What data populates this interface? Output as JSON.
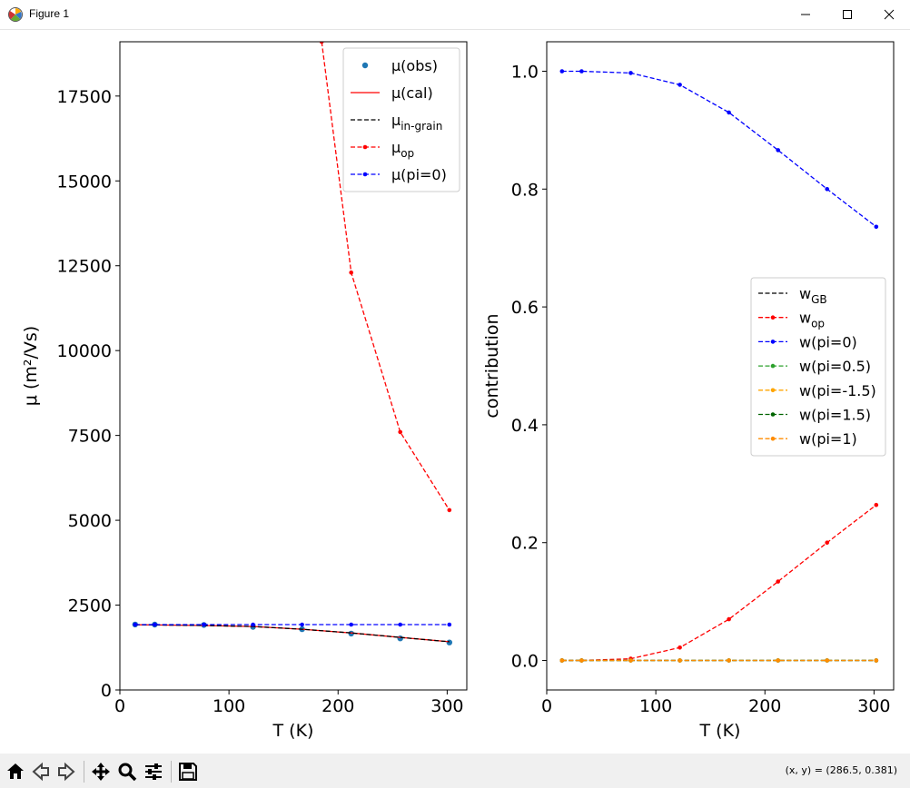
{
  "window": {
    "title": "Figure 1",
    "coords_readout": "(x, y) = (286.5, 0.381)"
  },
  "icons": {
    "app": "matplotlib-icon",
    "minimize": "minimize-icon",
    "maximize": "maximize-icon",
    "close": "close-icon",
    "home": "home-icon",
    "back": "back-arrow-icon",
    "forward": "forward-arrow-icon",
    "pan": "pan-icon",
    "zoom": "zoom-icon",
    "configure": "configure-subplots-icon",
    "save": "save-icon"
  },
  "chart_data": [
    {
      "type": "line",
      "xlabel": "T (K)",
      "ylabel": "μ (m²/Vs)",
      "xlim": [
        0,
        318
      ],
      "ylim": [
        0,
        19100
      ],
      "xticks": [
        0,
        100,
        200,
        300
      ],
      "yticks": [
        0,
        2500,
        5000,
        7500,
        10000,
        12500,
        15000,
        17500
      ],
      "xtick_labels": [
        "0",
        "100",
        "200",
        "300"
      ],
      "ytick_labels": [
        "0",
        "2500",
        "5000",
        "7500",
        "10000",
        "12500",
        "15000",
        "17500"
      ],
      "grid": false,
      "legend_position": "top-right",
      "x": [
        14,
        32,
        77,
        122,
        167,
        212,
        257,
        302
      ],
      "series": [
        {
          "name": "μ(obs)",
          "style": "markers",
          "color": "#1f77b4",
          "values": [
            1930,
            1925,
            1915,
            1860,
            1790,
            1660,
            1520,
            1400
          ]
        },
        {
          "name": "μ(cal)",
          "style": "solid",
          "color": "#ff0000",
          "values": [
            1920,
            1915,
            1900,
            1870,
            1790,
            1680,
            1550,
            1420
          ]
        },
        {
          "name": "μ_{in-grain}",
          "style": "dashed",
          "color": "#000000",
          "values": [
            1920,
            1915,
            1900,
            1870,
            1790,
            1680,
            1550,
            1420
          ]
        },
        {
          "name": "μ_{op}",
          "style": "dashed-marker",
          "color": "#ff0000",
          "x": [
            185,
            212,
            257,
            302
          ],
          "values": [
            19100,
            12300,
            7600,
            5300
          ]
        },
        {
          "name": "μ(pi=0)",
          "style": "dashed-marker",
          "color": "#0000ff",
          "values": [
            1925,
            1925,
            1925,
            1925,
            1925,
            1925,
            1925,
            1925
          ]
        }
      ]
    },
    {
      "type": "line",
      "xlabel": "T (K)",
      "ylabel": "contribution",
      "xlim": [
        0,
        318
      ],
      "ylim": [
        -0.05,
        1.05
      ],
      "xticks": [
        0,
        100,
        200,
        300
      ],
      "yticks": [
        0.0,
        0.2,
        0.4,
        0.6,
        0.8,
        1.0
      ],
      "xtick_labels": [
        "0",
        "100",
        "200",
        "300"
      ],
      "ytick_labels": [
        "0.0",
        "0.2",
        "0.4",
        "0.6",
        "0.8",
        "1.0"
      ],
      "grid": false,
      "legend_position": "center-right",
      "x": [
        14,
        32,
        77,
        122,
        167,
        212,
        257,
        302
      ],
      "series": [
        {
          "name": "w_{GB}",
          "style": "dashed",
          "color": "#000000",
          "values": [
            0,
            0,
            0,
            0,
            0,
            0,
            0,
            0
          ]
        },
        {
          "name": "w_{op}",
          "style": "dashed-marker",
          "color": "#ff0000",
          "values": [
            0.0,
            0.0,
            0.003,
            0.022,
            0.07,
            0.134,
            0.2,
            0.264
          ]
        },
        {
          "name": "w(pi=0)",
          "style": "dashed-marker",
          "color": "#0000ff",
          "values": [
            1.0,
            1.0,
            0.997,
            0.977,
            0.93,
            0.866,
            0.8,
            0.736
          ]
        },
        {
          "name": "w(pi=0.5)",
          "style": "dashed-marker",
          "color": "#2ca02c",
          "values": [
            0,
            0,
            0,
            0,
            0,
            0,
            0,
            0
          ]
        },
        {
          "name": "w(pi=-1.5)",
          "style": "dashed-marker",
          "color": "#ffa500",
          "values": [
            0,
            0,
            0,
            0,
            0,
            0,
            0,
            0
          ]
        },
        {
          "name": "w(pi=1.5)",
          "style": "dashed-marker",
          "color": "#006400",
          "values": [
            0,
            0,
            0,
            0,
            0,
            0,
            0,
            0
          ]
        },
        {
          "name": "w(pi=1)",
          "style": "dashed-marker",
          "color": "#ff8c00",
          "values": [
            0,
            0,
            0,
            0,
            0,
            0,
            0,
            0
          ]
        }
      ]
    }
  ]
}
